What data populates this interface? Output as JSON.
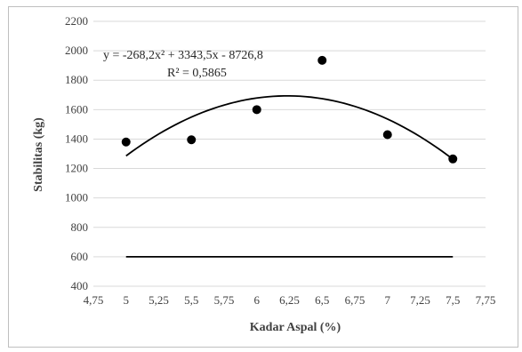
{
  "chart_data": {
    "type": "scatter",
    "xlabel": "Kadar Aspal (%)",
    "ylabel": "Stabilitas (kg)",
    "xlim": [
      4.75,
      7.75
    ],
    "ylim": [
      400,
      2200
    ],
    "x_ticks": [
      "4,75",
      "5",
      "5,25",
      "5,5",
      "5,75",
      "6",
      "6,25",
      "6,5",
      "6,75",
      "7",
      "7,25",
      "7,5",
      "7,75"
    ],
    "y_ticks": [
      "400",
      "600",
      "800",
      "1000",
      "1200",
      "1400",
      "1600",
      "1800",
      "2000",
      "2200"
    ],
    "x_tick_values": [
      4.75,
      5,
      5.25,
      5.5,
      5.75,
      6,
      6.25,
      6.5,
      6.75,
      7,
      7.25,
      7.5,
      7.75
    ],
    "y_tick_values": [
      400,
      600,
      800,
      1000,
      1200,
      1400,
      1600,
      1800,
      2000,
      2200
    ],
    "grid": "horizontal",
    "legend": "none",
    "points": [
      {
        "x": 5.0,
        "y": 1380
      },
      {
        "x": 5.5,
        "y": 1395
      },
      {
        "x": 6.0,
        "y": 1600
      },
      {
        "x": 6.5,
        "y": 1935
      },
      {
        "x": 7.0,
        "y": 1430
      },
      {
        "x": 7.5,
        "y": 1265
      }
    ],
    "trendline": {
      "type": "polynomial",
      "coefficients": {
        "a": -268.2,
        "b": 3343.5,
        "c": -8726.8
      },
      "x_range": [
        5.0,
        7.5
      ],
      "equation": "y = -268,2x² + 3343,5x - 8726,8",
      "r_squared": "R² = 0,5865"
    },
    "reference_line": {
      "y": 600,
      "x_range": [
        5.0,
        7.5
      ]
    },
    "colors": {
      "points": "#000000",
      "lines": "#000000",
      "grid": "#d9d9d9",
      "text": "#404040"
    }
  }
}
